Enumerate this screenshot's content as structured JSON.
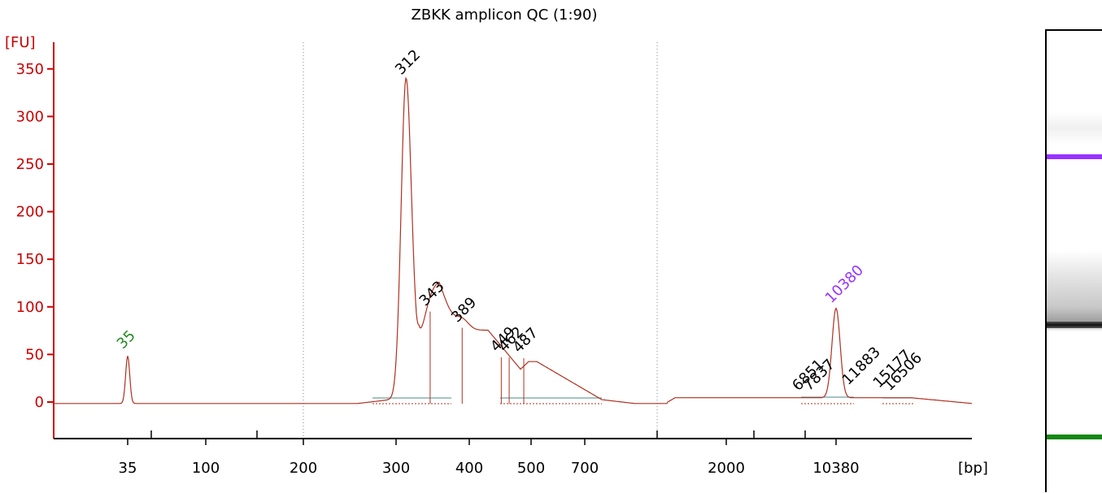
{
  "chart_data": {
    "type": "line",
    "title": "ZBKK amplicon QC (1:90)",
    "ylabel": "[FU]",
    "xlabel": "[bp]",
    "ylim": [
      -40,
      360
    ],
    "yticks": [
      0,
      50,
      100,
      150,
      200,
      250,
      300,
      350
    ],
    "xtick_labels": [
      "35",
      "100",
      "200",
      "300",
      "400",
      "500",
      "700",
      "2000",
      "10380"
    ],
    "lower_marker": "35",
    "upper_marker": "10380",
    "peaks": [
      {
        "label": "35",
        "bp": 35,
        "fu": 50,
        "color": "#228b22"
      },
      {
        "label": "312",
        "bp": 312,
        "fu": 338,
        "color": "#000000"
      },
      {
        "label": "343",
        "bp": 343,
        "fu": 95,
        "color": "#000000"
      },
      {
        "label": "389",
        "bp": 389,
        "fu": 78,
        "color": "#000000"
      },
      {
        "label": "449",
        "bp": 449,
        "fu": 47,
        "color": "#000000"
      },
      {
        "label": "462",
        "bp": 462,
        "fu": 47,
        "color": "#000000"
      },
      {
        "label": "487",
        "bp": 487,
        "fu": 46,
        "color": "#000000"
      },
      {
        "label": "6851",
        "bp": 6851,
        "fu": 6,
        "color": "#000000"
      },
      {
        "label": "7837",
        "bp": 7837,
        "fu": 6,
        "color": "#000000"
      },
      {
        "label": "10380",
        "bp": 10380,
        "fu": 98,
        "color": "#9933ff"
      },
      {
        "label": "11883",
        "bp": 11883,
        "fu": 12,
        "color": "#000000"
      },
      {
        "label": "15177",
        "bp": 15177,
        "fu": 9,
        "color": "#000000"
      },
      {
        "label": "16506",
        "bp": 16506,
        "fu": 6,
        "color": "#000000"
      }
    ],
    "trace_color": "#b03020",
    "axis_color": "#cc0000",
    "grid": false
  },
  "gel": {
    "upper_marker_color": "#9933ff",
    "lower_marker_color": "#118811"
  }
}
